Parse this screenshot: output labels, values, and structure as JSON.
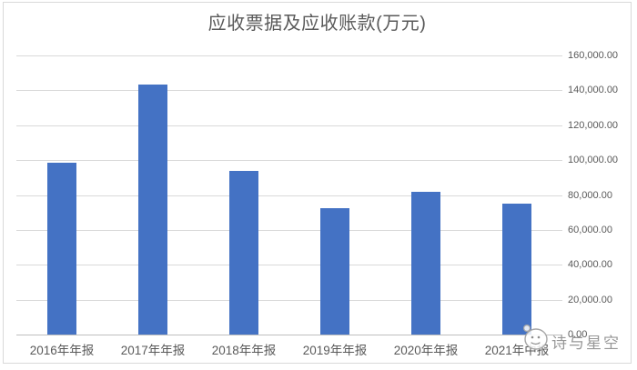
{
  "watermark": {
    "text": "诗与星空",
    "icon": "face-emoji-icon",
    "color": "#7d7d7d"
  },
  "chart_data": {
    "type": "bar",
    "title": "应收票据及应收账款(万元)",
    "categories": [
      "2016年年报",
      "2017年年报",
      "2018年年报",
      "2019年年报",
      "2020年年报",
      "2021年中报"
    ],
    "values": [
      98500,
      143500,
      93600,
      72300,
      82000,
      75000
    ],
    "xlabel": "",
    "ylabel": "",
    "ylim": [
      0,
      160000
    ],
    "ytick_interval": 20000,
    "ytick_labels_top_to_bottom": [
      "160,000.00",
      "140,000.00",
      "120,000.00",
      "100,000.00",
      "80,000.00",
      "60,000.00",
      "40,000.00",
      "20,000.00",
      "0.00"
    ],
    "yaxis_side": "right",
    "grid": true,
    "legend": "none",
    "bar_color": "#4472C4",
    "gridline_color": "#D9D9D9",
    "axis_line_color": "#BFBFBF",
    "text_color": "#595959",
    "background_color": "#FFFFFF"
  }
}
